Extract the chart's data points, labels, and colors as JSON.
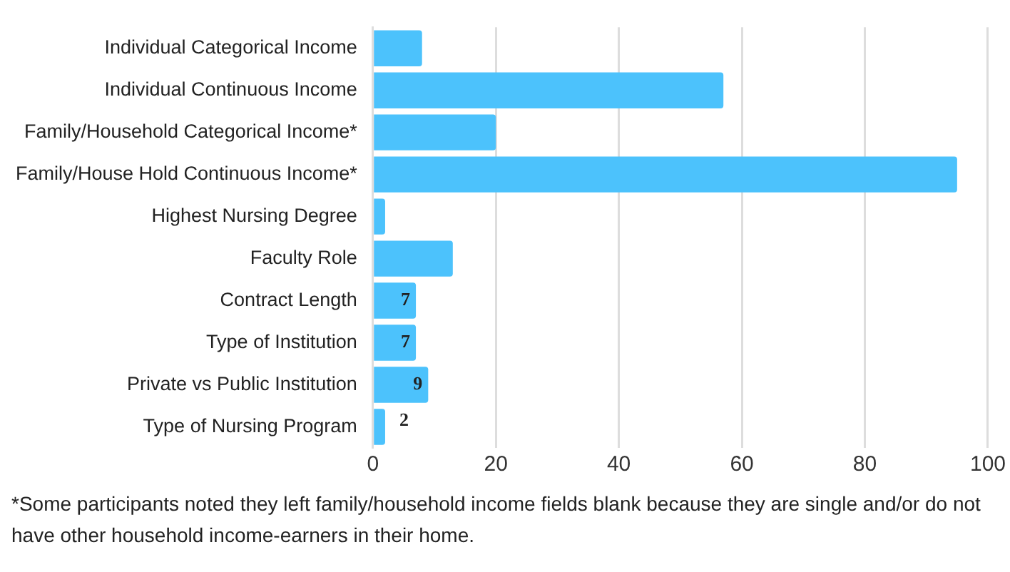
{
  "chart_data": {
    "type": "bar",
    "orientation": "horizontal",
    "categories": [
      "Individual Categorical Income",
      "Individual Continuous Income",
      "Family/Household Categorical Income*",
      "Family/House Hold Continuous Income*",
      "Highest Nursing Degree",
      "Faculty Role",
      "Contract Length",
      "Type of Institution",
      "Private vs Public Institution",
      "Type of Nursing Program"
    ],
    "values": [
      8,
      57,
      20,
      95,
      2,
      13,
      7,
      7,
      9,
      2
    ],
    "value_labels": [
      null,
      null,
      null,
      null,
      null,
      null,
      "7",
      "7",
      "9",
      "2"
    ],
    "color": "#4cc2fc",
    "xlim": [
      0,
      100
    ],
    "xticks": [
      0,
      20,
      40,
      60,
      80,
      100
    ],
    "grid": "x",
    "annotations": [
      "*Some participants noted they left family/household income fields blank because they are single and/or do not have other household income-earners in their home."
    ]
  }
}
